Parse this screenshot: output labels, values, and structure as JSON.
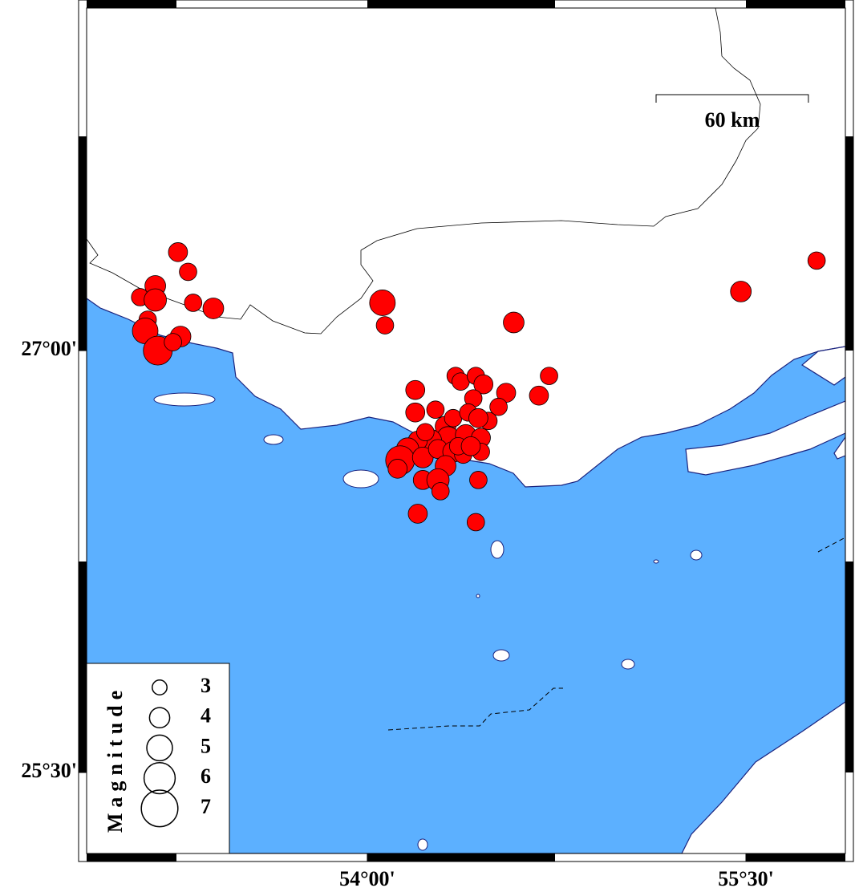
{
  "map": {
    "xlim": [
      52.888,
      55.894
    ],
    "ylim": [
      25.212,
      28.218
    ],
    "xticks": [
      {
        "value": 54.0,
        "label": "54°00'"
      },
      {
        "value": 55.5,
        "label": "55°30'"
      }
    ],
    "yticks": [
      {
        "value": 27.0,
        "label": "27°00'"
      },
      {
        "value": 25.5,
        "label": "25°30'"
      }
    ],
    "scale_bar": {
      "value": 60,
      "label": "60 km"
    },
    "legend": {
      "title": "Magnitude",
      "sizes": [
        3,
        4,
        5,
        6,
        7
      ]
    },
    "color": "#ff0000",
    "events": [
      {
        "lon": 53.25,
        "lat": 27.35,
        "mag": 3.8
      },
      {
        "lon": 53.29,
        "lat": 27.28,
        "mag": 3.5
      },
      {
        "lon": 53.1,
        "lat": 27.19,
        "mag": 3.5
      },
      {
        "lon": 53.16,
        "lat": 27.23,
        "mag": 4.1
      },
      {
        "lon": 53.16,
        "lat": 27.18,
        "mag": 4.4
      },
      {
        "lon": 53.31,
        "lat": 27.17,
        "mag": 3.5
      },
      {
        "lon": 53.39,
        "lat": 27.15,
        "mag": 4.1
      },
      {
        "lon": 53.13,
        "lat": 27.11,
        "mag": 3.5
      },
      {
        "lon": 53.12,
        "lat": 27.07,
        "mag": 5.0
      },
      {
        "lon": 53.17,
        "lat": 27.0,
        "mag": 5.6
      },
      {
        "lon": 53.26,
        "lat": 27.05,
        "mag": 4.1
      },
      {
        "lon": 53.23,
        "lat": 27.03,
        "mag": 3.5
      },
      {
        "lon": 54.06,
        "lat": 27.17,
        "mag": 5.0
      },
      {
        "lon": 54.07,
        "lat": 27.09,
        "mag": 3.5
      },
      {
        "lon": 54.58,
        "lat": 27.1,
        "mag": 4.1
      },
      {
        "lon": 55.48,
        "lat": 27.21,
        "mag": 4.1
      },
      {
        "lon": 55.78,
        "lat": 27.32,
        "mag": 3.5
      },
      {
        "lon": 54.72,
        "lat": 26.91,
        "mag": 3.5
      },
      {
        "lon": 54.68,
        "lat": 26.84,
        "mag": 3.8
      },
      {
        "lon": 54.55,
        "lat": 26.85,
        "mag": 3.8
      },
      {
        "lon": 54.52,
        "lat": 26.8,
        "mag": 3.5
      },
      {
        "lon": 54.48,
        "lat": 26.75,
        "mag": 3.5
      },
      {
        "lon": 54.19,
        "lat": 26.86,
        "mag": 3.8
      },
      {
        "lon": 54.35,
        "lat": 26.91,
        "mag": 3.5
      },
      {
        "lon": 54.37,
        "lat": 26.89,
        "mag": 3.5
      },
      {
        "lon": 54.43,
        "lat": 26.91,
        "mag": 3.5
      },
      {
        "lon": 54.46,
        "lat": 26.88,
        "mag": 3.8
      },
      {
        "lon": 54.42,
        "lat": 26.83,
        "mag": 3.5
      },
      {
        "lon": 54.19,
        "lat": 26.78,
        "mag": 3.8
      },
      {
        "lon": 54.27,
        "lat": 26.79,
        "mag": 3.5
      },
      {
        "lon": 54.31,
        "lat": 26.73,
        "mag": 4.1
      },
      {
        "lon": 54.34,
        "lat": 26.76,
        "mag": 3.5
      },
      {
        "lon": 54.4,
        "lat": 26.78,
        "mag": 3.5
      },
      {
        "lon": 54.44,
        "lat": 26.76,
        "mag": 3.8
      },
      {
        "lon": 54.32,
        "lat": 26.69,
        "mag": 4.4
      },
      {
        "lon": 54.39,
        "lat": 26.7,
        "mag": 4.1
      },
      {
        "lon": 54.45,
        "lat": 26.69,
        "mag": 3.8
      },
      {
        "lon": 54.25,
        "lat": 26.68,
        "mag": 4.4
      },
      {
        "lon": 54.2,
        "lat": 26.68,
        "mag": 3.8
      },
      {
        "lon": 54.16,
        "lat": 26.65,
        "mag": 4.4
      },
      {
        "lon": 54.13,
        "lat": 26.61,
        "mag": 5.6
      },
      {
        "lon": 54.12,
        "lat": 26.58,
        "mag": 3.8
      },
      {
        "lon": 54.22,
        "lat": 26.62,
        "mag": 4.1
      },
      {
        "lon": 54.28,
        "lat": 26.65,
        "mag": 3.8
      },
      {
        "lon": 54.34,
        "lat": 26.64,
        "mag": 4.1
      },
      {
        "lon": 54.38,
        "lat": 26.63,
        "mag": 3.5
      },
      {
        "lon": 54.45,
        "lat": 26.64,
        "mag": 3.5
      },
      {
        "lon": 54.31,
        "lat": 26.59,
        "mag": 4.1
      },
      {
        "lon": 54.22,
        "lat": 26.54,
        "mag": 3.8
      },
      {
        "lon": 54.28,
        "lat": 26.54,
        "mag": 4.4
      },
      {
        "lon": 54.29,
        "lat": 26.5,
        "mag": 3.5
      },
      {
        "lon": 54.44,
        "lat": 26.54,
        "mag": 3.5
      },
      {
        "lon": 54.2,
        "lat": 26.42,
        "mag": 3.8
      },
      {
        "lon": 54.43,
        "lat": 26.39,
        "mag": 3.5
      },
      {
        "lon": 54.23,
        "lat": 26.71,
        "mag": 3.5
      },
      {
        "lon": 54.36,
        "lat": 26.66,
        "mag": 3.5
      },
      {
        "lon": 54.41,
        "lat": 26.66,
        "mag": 3.8
      }
    ]
  }
}
